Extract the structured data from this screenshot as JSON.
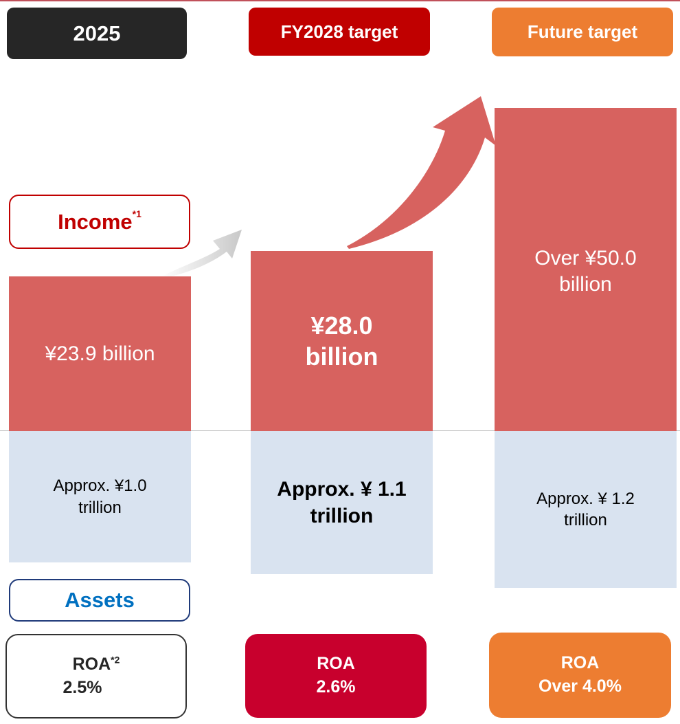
{
  "columns": [
    {
      "heading": "2025",
      "income": "¥23.9 billion",
      "assets": "Approx. ¥1.0 trillion",
      "roa_label": "ROA",
      "roa_note": "*2",
      "roa_value": "2.5%"
    },
    {
      "heading": "FY2028 target",
      "income": "¥28.0 billion",
      "assets": "Approx. ¥ 1.1 trillion",
      "roa_label": "ROA",
      "roa_value": "2.6%"
    },
    {
      "heading": "Future target",
      "income": "Over ¥50.0 billion",
      "assets": "Approx. ¥ 1.2 trillion",
      "roa_label": "ROA",
      "roa_value": "Over 4.0%"
    }
  ],
  "legend": {
    "income": "Income",
    "income_note": "*1",
    "assets": "Assets"
  }
}
